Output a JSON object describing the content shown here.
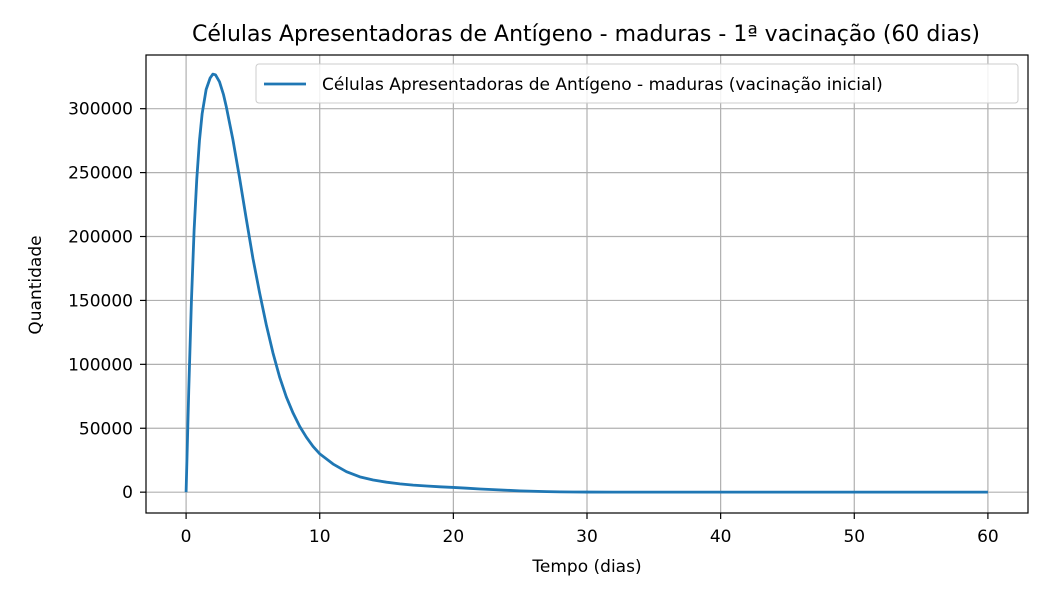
{
  "chart_data": {
    "type": "line",
    "title": "Células Apresentadoras de Antígeno - maduras - 1ª vacinação (60 dias)",
    "xlabel": "Tempo (dias)",
    "ylabel": "Quantidade",
    "xlim": [
      -3,
      63
    ],
    "ylim": [
      -16300,
      342000
    ],
    "x_ticks": [
      0,
      10,
      20,
      30,
      40,
      50,
      60
    ],
    "y_ticks": [
      0,
      50000,
      100000,
      150000,
      200000,
      250000,
      300000
    ],
    "x_tick_labels": [
      "0",
      "10",
      "20",
      "30",
      "40",
      "50",
      "60"
    ],
    "y_tick_labels": [
      "0",
      "50000",
      "100000",
      "150000",
      "200000",
      "250000",
      "300000"
    ],
    "grid": true,
    "legend_position": "top-right",
    "colors": {
      "series": "#1f77b4"
    },
    "series": [
      {
        "name": "Células Apresentadoras de Antígeno - maduras (vacinação inicial)",
        "x": [
          0,
          0.2,
          0.4,
          0.6,
          0.8,
          1.0,
          1.2,
          1.5,
          1.8,
          2.0,
          2.2,
          2.5,
          2.8,
          3.0,
          3.5,
          4.0,
          4.5,
          5.0,
          5.5,
          6.0,
          6.5,
          7.0,
          7.5,
          8.0,
          8.5,
          9.0,
          9.5,
          10,
          11,
          12,
          13,
          14,
          15,
          16,
          17,
          18,
          19,
          20,
          21,
          22,
          23,
          24,
          25,
          26,
          27,
          28,
          29,
          30,
          32,
          35,
          40,
          45,
          50,
          55,
          60
        ],
        "y": [
          0,
          80000,
          150000,
          205000,
          245000,
          275000,
          296000,
          315000,
          324000,
          327000,
          326500,
          321000,
          311000,
          302000,
          276000,
          246000,
          214000,
          183000,
          156000,
          131000,
          109000,
          90000,
          74500,
          62000,
          51500,
          43000,
          35800,
          30000,
          22000,
          16000,
          12000,
          9500,
          7800,
          6500,
          5500,
          4800,
          4200,
          3700,
          3100,
          2500,
          2000,
          1500,
          1000,
          700,
          400,
          250,
          150,
          100,
          50,
          20,
          0,
          0,
          0,
          0,
          0
        ]
      }
    ]
  }
}
